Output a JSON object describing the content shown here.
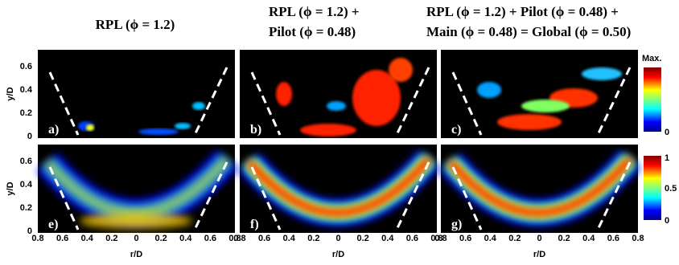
{
  "column_titles": [
    [
      "RPL (ϕ = 1.2)"
    ],
    [
      "RPL (ϕ = 1.2) +",
      "Pilot (ϕ = 0.48)"
    ],
    [
      "RPL (ϕ = 1.2) + Pilot (ϕ = 0.48) +",
      "Main (ϕ = 0.48) = Global (ϕ = 0.50)"
    ]
  ],
  "panel_labels": [
    [
      "a)",
      "b)",
      "c)"
    ],
    [
      "e)",
      "f)",
      "g)"
    ]
  ],
  "y_axis_label": "y/D",
  "y_ticks": [
    "0.6",
    "0.4",
    "0.2",
    "0"
  ],
  "x_axis_label": "r/D",
  "x_ticks": [
    "0.8",
    "0.6",
    "0.4",
    "0.2",
    "0",
    "0.2",
    "0.4",
    "0.6",
    "0.8"
  ],
  "colorbar_top": {
    "max_label": "Max.",
    "min_label": "0"
  },
  "colorbar_bottom": {
    "labels": [
      "1",
      "0.5",
      "0"
    ]
  }
}
